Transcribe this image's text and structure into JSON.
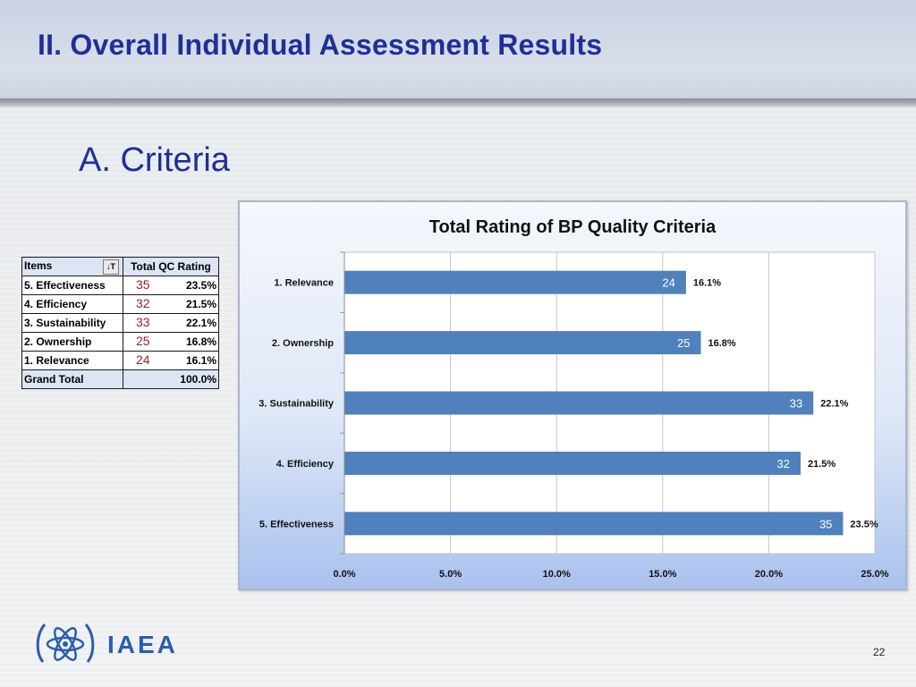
{
  "slide": {
    "title": "II. Overall Individual Assessment Results",
    "subtitle": "A. Criteria",
    "page_number": "22",
    "logo_text": "IAEA"
  },
  "table": {
    "headers": [
      "Items",
      "Total QC Rating"
    ],
    "filter_icon": "sort-filter-icon",
    "rows": [
      {
        "item": "5. Effectiveness",
        "count": "35",
        "rating": "23.5%"
      },
      {
        "item": "4. Efficiency",
        "count": "32",
        "rating": "21.5%"
      },
      {
        "item": "3. Sustainability",
        "count": "33",
        "rating": "22.1%"
      },
      {
        "item": "2. Ownership",
        "count": "25",
        "rating": "16.8%"
      },
      {
        "item": "1. Relevance",
        "count": "24",
        "rating": "16.1%"
      }
    ],
    "grand_total": {
      "item": "Grand Total",
      "rating": "100.0%"
    }
  },
  "chart_data": {
    "type": "bar",
    "orientation": "horizontal",
    "title": "Total Rating of BP Quality Criteria",
    "categories": [
      "1. Relevance",
      "2. Ownership",
      "3. Sustainability",
      "4. Efficiency",
      "5. Effectiveness"
    ],
    "values": [
      16.1,
      16.8,
      22.1,
      21.5,
      23.5
    ],
    "value_labels": [
      "16.1%",
      "16.8%",
      "22.1%",
      "21.5%",
      "23.5%"
    ],
    "bar_labels": [
      "24",
      "25",
      "33",
      "32",
      "35"
    ],
    "x_ticks": [
      "0.0%",
      "5.0%",
      "10.0%",
      "15.0%",
      "20.0%",
      "25.0%"
    ],
    "xlim": [
      0,
      25
    ],
    "grid": true,
    "legend": "none",
    "bar_color": "#4f81bd"
  },
  "colors": {
    "title": "#1f2f99",
    "count": "#a02020",
    "bar": "#4f81bd"
  }
}
